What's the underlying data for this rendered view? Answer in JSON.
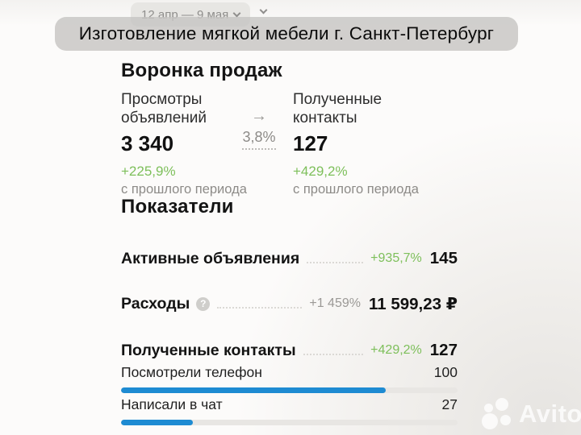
{
  "overlay": {
    "title": "Изготовление мягкой мебели г. Санкт-Петербург"
  },
  "date_range": {
    "label": "12 апр — 9 мая"
  },
  "funnel": {
    "heading": "Воронка продаж",
    "steps": [
      {
        "label_line1": "Просмотры",
        "label_line2": "объявлений",
        "value": "3 340",
        "delta": "+225,9%",
        "delta_note": "с прошлого периода"
      },
      {
        "label_line1": "Полученные",
        "label_line2": "контакты",
        "value": "127",
        "delta": "+429,2%",
        "delta_note": "с прошлого периода"
      }
    ],
    "conversion": {
      "arrow": "→",
      "value": "3,8%"
    }
  },
  "metrics": {
    "heading": "Показатели",
    "rows": [
      {
        "label": "Активные объявления",
        "delta": "+935,7%",
        "delta_color": "green",
        "value": "145"
      },
      {
        "label": "Расходы",
        "help_icon": "?",
        "delta": "+1 459%",
        "delta_color": "gray",
        "value": "11 599,23 ₽"
      },
      {
        "label": "Полученные контакты",
        "delta": "+429,2%",
        "delta_color": "green",
        "value": "127"
      }
    ],
    "sub_rows": [
      {
        "label": "Посмотрели телефон",
        "value": "100",
        "bar_width": "78.7%"
      },
      {
        "label": "Написали в чат",
        "value": "27",
        "bar_width": "21.3%"
      }
    ]
  },
  "watermark": {
    "text": "Avito"
  },
  "colors": {
    "green": "#7dbf5a",
    "blue": "#1e8bd2"
  }
}
